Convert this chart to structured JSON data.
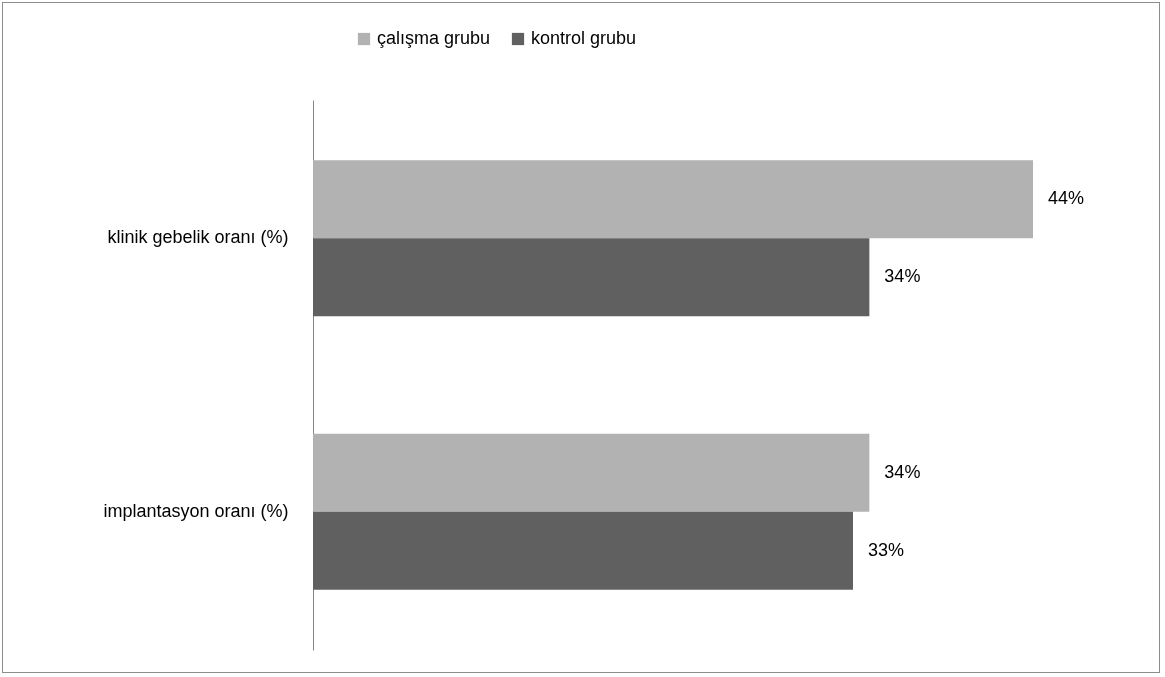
{
  "chart_data": {
    "type": "bar",
    "orientation": "horizontal",
    "categories": [
      "klinik gebelik oranı  (%)",
      "implantasyon oranı (%)"
    ],
    "series": [
      {
        "name": "çalışma grubu",
        "color": "#b2b2b2",
        "values": [
          44,
          34
        ],
        "value_labels": [
          "44%",
          "34%"
        ]
      },
      {
        "name": "kontrol grubu",
        "color": "#606060",
        "values": [
          34,
          33
        ],
        "value_labels": [
          "34%",
          "33%"
        ]
      }
    ],
    "legend": "top"
  }
}
